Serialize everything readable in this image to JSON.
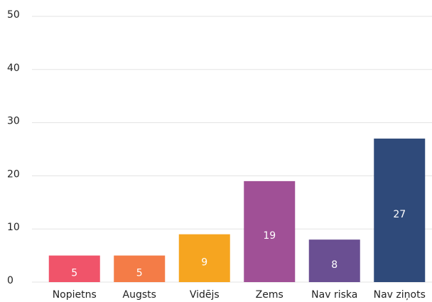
{
  "chart_data": {
    "type": "bar",
    "categories": [
      "Nopietns",
      "Augsts",
      "Vidējs",
      "Zems",
      "Nav riska",
      "Nav ziņots"
    ],
    "values": [
      5,
      5,
      9,
      19,
      8,
      27
    ],
    "colors": [
      "#f0546a",
      "#f47c47",
      "#f6a520",
      "#a05096",
      "#6a4f92",
      "#2f4a7a"
    ],
    "ylim": [
      0,
      50
    ],
    "yticks": [
      0,
      10,
      20,
      30,
      40,
      50
    ],
    "grid": true
  }
}
